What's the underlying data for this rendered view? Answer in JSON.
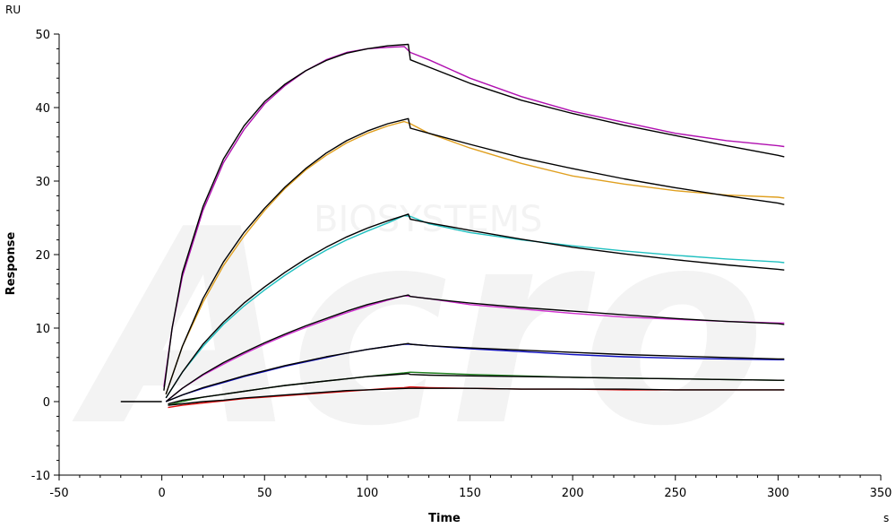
{
  "chart_data": {
    "type": "line",
    "y_unit": "RU",
    "x_unit": "s",
    "ylabel": "Response",
    "xlabel": "Time",
    "xlim": [
      -50,
      350
    ],
    "ylim": [
      -10,
      50
    ],
    "xticks": [
      -50,
      0,
      50,
      100,
      150,
      200,
      250,
      300,
      350
    ],
    "yticks": [
      -10,
      0,
      10,
      20,
      30,
      40,
      50
    ],
    "grid": false,
    "baseline": {
      "x": [
        -20,
        0
      ],
      "y": 0
    },
    "series": [
      {
        "color": "#b010b0",
        "x": [
          1,
          5,
          10,
          20,
          30,
          40,
          50,
          60,
          70,
          80,
          90,
          100,
          110,
          118,
          121,
          130,
          150,
          175,
          200,
          225,
          250,
          275,
          300,
          303
        ],
        "y": [
          2,
          10,
          17,
          26,
          32.5,
          37,
          40.5,
          43,
          45,
          46.5,
          47.5,
          48,
          48.2,
          48.3,
          47.5,
          46.5,
          44,
          41.5,
          39.5,
          38,
          36.5,
          35.5,
          34.8,
          34.7
        ]
      },
      {
        "color": "#000000",
        "x": [
          1,
          5,
          10,
          20,
          30,
          40,
          50,
          60,
          70,
          80,
          90,
          100,
          110,
          120,
          121,
          130,
          150,
          175,
          200,
          225,
          250,
          275,
          300,
          303
        ],
        "y": [
          1.5,
          10,
          17.5,
          26.5,
          33,
          37.5,
          40.8,
          43.2,
          45,
          46.4,
          47.4,
          48,
          48.4,
          48.6,
          46.5,
          45.5,
          43.3,
          41,
          39.2,
          37.6,
          36.2,
          34.8,
          33.5,
          33.3
        ]
      },
      {
        "color": "#e0a020",
        "x": [
          2,
          10,
          20,
          30,
          40,
          50,
          60,
          70,
          80,
          90,
          100,
          110,
          118,
          121,
          130,
          150,
          175,
          200,
          225,
          250,
          275,
          300,
          303
        ],
        "y": [
          1,
          7.5,
          13.5,
          18.5,
          22.5,
          26,
          29,
          31.5,
          33.5,
          35.2,
          36.5,
          37.5,
          38.1,
          37.8,
          36.5,
          34.5,
          32.4,
          30.7,
          29.6,
          28.7,
          28.1,
          27.8,
          27.7
        ]
      },
      {
        "color": "#000000",
        "x": [
          2,
          10,
          20,
          30,
          40,
          50,
          60,
          70,
          80,
          90,
          100,
          110,
          120,
          121,
          130,
          150,
          175,
          200,
          225,
          250,
          275,
          300,
          303
        ],
        "y": [
          1,
          7.5,
          14,
          19,
          23,
          26.3,
          29.2,
          31.7,
          33.8,
          35.5,
          36.8,
          37.8,
          38.5,
          37.2,
          36.5,
          35,
          33.2,
          31.7,
          30.3,
          29.1,
          28,
          27,
          26.8
        ]
      },
      {
        "color": "#20c0c0",
        "x": [
          2,
          10,
          20,
          30,
          40,
          50,
          60,
          70,
          80,
          90,
          100,
          110,
          118,
          121,
          130,
          150,
          175,
          200,
          225,
          250,
          275,
          300,
          303
        ],
        "y": [
          0.5,
          4,
          7.5,
          10.5,
          13,
          15.2,
          17.2,
          19,
          20.6,
          22,
          23.2,
          24.3,
          25.3,
          25.2,
          24.2,
          23,
          22,
          21.2,
          20.5,
          19.9,
          19.4,
          19,
          18.9
        ]
      },
      {
        "color": "#000000",
        "x": [
          2,
          10,
          20,
          30,
          40,
          50,
          60,
          70,
          80,
          90,
          100,
          110,
          120,
          121,
          130,
          150,
          175,
          200,
          225,
          250,
          275,
          300,
          303
        ],
        "y": [
          0.5,
          4,
          7.8,
          10.8,
          13.4,
          15.6,
          17.6,
          19.4,
          21,
          22.4,
          23.6,
          24.6,
          25.5,
          24.8,
          24.3,
          23.3,
          22.1,
          21,
          20.1,
          19.3,
          18.6,
          18,
          17.9
        ]
      },
      {
        "color": "#d030d0",
        "x": [
          2,
          10,
          20,
          30,
          40,
          50,
          60,
          70,
          80,
          90,
          100,
          110,
          118,
          121,
          130,
          150,
          175,
          200,
          225,
          250,
          275,
          300,
          303
        ],
        "y": [
          0,
          1.8,
          3.6,
          5.1,
          6.5,
          7.8,
          9,
          10.1,
          11.1,
          12.1,
          13,
          13.8,
          14.4,
          14.3,
          14,
          13.2,
          12.6,
          12,
          11.5,
          11.2,
          10.9,
          10.7,
          10.7
        ]
      },
      {
        "color": "#000000",
        "x": [
          2,
          10,
          20,
          30,
          40,
          50,
          60,
          70,
          80,
          90,
          100,
          110,
          120,
          121,
          130,
          150,
          175,
          200,
          225,
          250,
          275,
          300,
          303
        ],
        "y": [
          0,
          1.8,
          3.7,
          5.3,
          6.7,
          8,
          9.2,
          10.3,
          11.3,
          12.3,
          13.2,
          13.9,
          14.5,
          14.3,
          14,
          13.4,
          12.8,
          12.3,
          11.8,
          11.3,
          10.9,
          10.6,
          10.5
        ]
      },
      {
        "color": "#1010c0",
        "x": [
          2,
          10,
          20,
          30,
          40,
          50,
          60,
          70,
          80,
          90,
          100,
          110,
          118,
          121,
          130,
          150,
          175,
          200,
          225,
          250,
          275,
          300,
          303
        ],
        "y": [
          0,
          0.9,
          1.8,
          2.6,
          3.4,
          4.1,
          4.8,
          5.4,
          6,
          6.6,
          7.1,
          7.5,
          7.8,
          7.8,
          7.6,
          7.2,
          6.8,
          6.4,
          6.1,
          5.9,
          5.8,
          5.7,
          5.7
        ]
      },
      {
        "color": "#000000",
        "x": [
          2,
          10,
          20,
          30,
          40,
          50,
          60,
          70,
          80,
          90,
          100,
          110,
          120,
          121,
          130,
          150,
          175,
          200,
          225,
          250,
          275,
          300,
          303
        ],
        "y": [
          0,
          0.9,
          1.9,
          2.7,
          3.5,
          4.2,
          4.9,
          5.5,
          6.1,
          6.6,
          7.1,
          7.5,
          7.9,
          7.8,
          7.6,
          7.3,
          7,
          6.7,
          6.4,
          6.2,
          6,
          5.8,
          5.8
        ]
      },
      {
        "color": "#208020",
        "x": [
          3,
          10,
          20,
          30,
          40,
          50,
          60,
          70,
          80,
          90,
          100,
          110,
          118,
          121,
          130,
          150,
          175,
          200,
          225,
          250,
          275,
          300,
          303
        ],
        "y": [
          -0.5,
          0,
          0.6,
          1,
          1.4,
          1.8,
          2.2,
          2.5,
          2.8,
          3.1,
          3.4,
          3.7,
          3.9,
          4,
          3.9,
          3.7,
          3.5,
          3.3,
          3.2,
          3.1,
          3,
          2.9,
          2.9
        ]
      },
      {
        "color": "#000000",
        "x": [
          3,
          10,
          20,
          30,
          40,
          50,
          60,
          70,
          80,
          90,
          100,
          110,
          120,
          121,
          130,
          150,
          175,
          200,
          225,
          250,
          275,
          300,
          303
        ],
        "y": [
          -0.3,
          0.2,
          0.6,
          1,
          1.4,
          1.8,
          2.2,
          2.5,
          2.8,
          3.1,
          3.4,
          3.6,
          3.8,
          3.7,
          3.6,
          3.5,
          3.4,
          3.3,
          3.2,
          3.1,
          3,
          2.9,
          2.9
        ]
      },
      {
        "color": "#e01010",
        "x": [
          3,
          10,
          20,
          30,
          40,
          50,
          60,
          70,
          80,
          90,
          100,
          110,
          118,
          121,
          130,
          150,
          175,
          200,
          225,
          250,
          275,
          300,
          303
        ],
        "y": [
          -0.8,
          -0.5,
          -0.2,
          0.1,
          0.4,
          0.6,
          0.8,
          1,
          1.2,
          1.4,
          1.6,
          1.8,
          1.9,
          2,
          1.9,
          1.8,
          1.7,
          1.7,
          1.6,
          1.6,
          1.6,
          1.6,
          1.6
        ]
      },
      {
        "color": "#000000",
        "x": [
          3,
          10,
          20,
          30,
          40,
          50,
          60,
          70,
          80,
          90,
          100,
          110,
          120,
          121,
          130,
          150,
          175,
          200,
          225,
          250,
          275,
          300,
          303
        ],
        "y": [
          -0.5,
          -0.3,
          0,
          0.2,
          0.5,
          0.7,
          0.9,
          1.1,
          1.3,
          1.5,
          1.6,
          1.7,
          1.8,
          1.8,
          1.8,
          1.8,
          1.7,
          1.7,
          1.7,
          1.6,
          1.6,
          1.6,
          1.6
        ]
      }
    ]
  }
}
